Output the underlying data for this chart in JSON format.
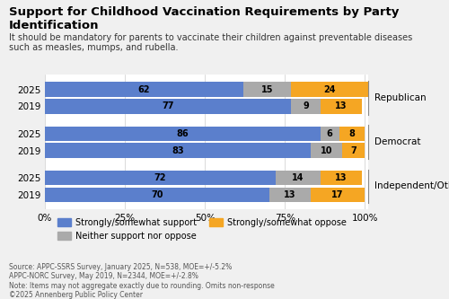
{
  "title": "Support for Childhood Vaccination Requirements by Party Identification",
  "subtitle": "It should be mandatory for parents to vaccinate their children against preventable diseases\nsuch as measles, mumps, and rubella.",
  "groups": [
    "Republican",
    "Democrat",
    "Independent/Other"
  ],
  "years": [
    "2025",
    "2019"
  ],
  "data": {
    "Republican": {
      "2025": [
        62,
        15,
        24
      ],
      "2019": [
        77,
        9,
        13
      ]
    },
    "Democrat": {
      "2025": [
        86,
        6,
        8
      ],
      "2019": [
        83,
        10,
        7
      ]
    },
    "Independent/Other": {
      "2025": [
        72,
        14,
        13
      ],
      "2019": [
        70,
        13,
        17
      ]
    }
  },
  "colors": [
    "#5b7fcc",
    "#aaaaaa",
    "#f5a623"
  ],
  "bar_height": 0.35,
  "legend_labels": [
    "Strongly/somewhat support",
    "Neither support nor oppose",
    "Strongly/somewhat oppose"
  ],
  "footnote": "Source: APPC-SSRS Survey, January 2025, N=538, MOE=+/-5.2%\nAPPC-NORC Survey, May 2019, N=2344, MOE=+/-2.8%\nNote: Items may not aggregate exactly due to rounding. Omits non-response\n©2025 Annenberg Public Policy Center",
  "bg_color": "#f0f0f0",
  "bar_area_bg": "#ffffff"
}
